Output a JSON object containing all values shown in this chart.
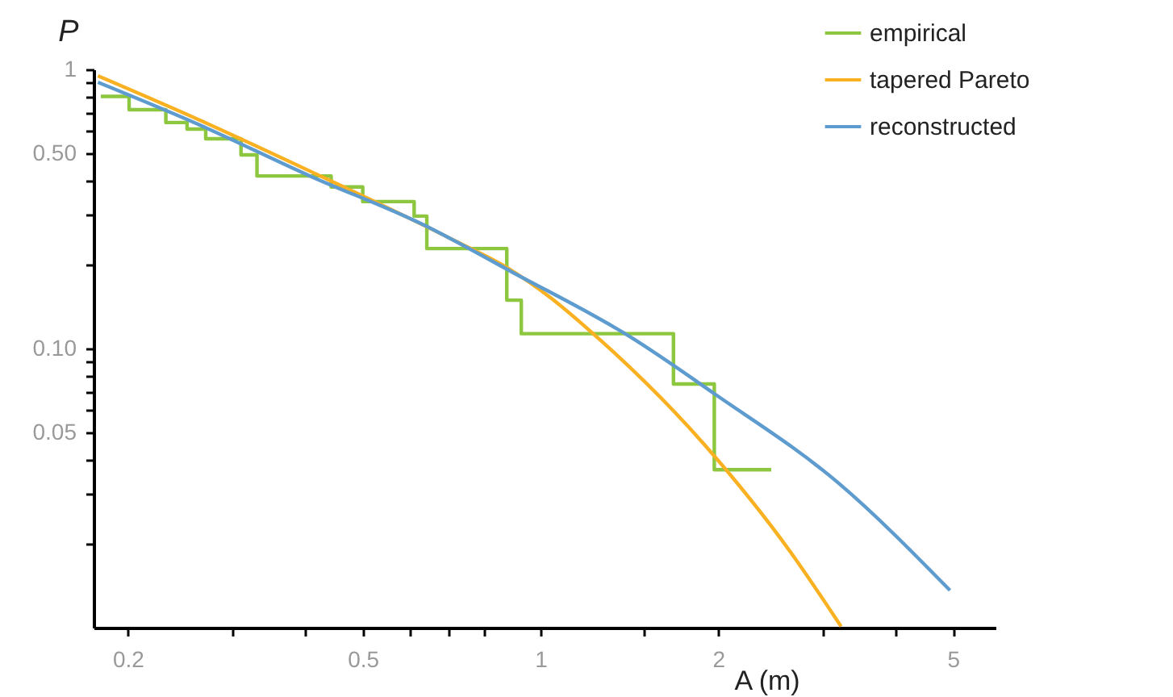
{
  "chart_data": {
    "type": "line",
    "xlabel": "A (m)",
    "ylabel": "P",
    "log": "xy",
    "grid": false,
    "legend": "top right",
    "xlim": [
      0.175,
      5.9
    ],
    "ylim": [
      0.01,
      1
    ],
    "xticks": [
      0.2,
      {
        "value": 0.3,
        "label": null
      },
      {
        "value": 0.4,
        "label": null
      },
      0.5,
      {
        "value": 0.6,
        "label": null
      },
      {
        "value": 0.7,
        "label": null
      },
      {
        "value": 0.8,
        "label": null
      },
      1,
      {
        "value": 1.5,
        "label": null
      },
      2,
      {
        "value": 3,
        "label": null
      },
      {
        "value": 4,
        "label": null
      },
      5
    ],
    "yticks": [
      {
        "value": 0.02,
        "label": null
      },
      {
        "value": 0.03,
        "label": null
      },
      {
        "value": 0.04,
        "label": null
      },
      {
        "value": 0.05,
        "label": "0.05"
      },
      {
        "value": 0.06,
        "label": null
      },
      {
        "value": 0.07,
        "label": null
      },
      {
        "value": 0.08,
        "label": null
      },
      {
        "value": 0.09,
        "label": null
      },
      {
        "value": 0.1,
        "label": "0.10"
      },
      {
        "value": 0.2,
        "label": null
      },
      {
        "value": 0.3,
        "label": null
      },
      {
        "value": 0.4,
        "label": null
      },
      {
        "value": 0.5,
        "label": "0.50"
      },
      {
        "value": 0.6,
        "label": null
      },
      {
        "value": 0.7,
        "label": null
      },
      {
        "value": 0.8,
        "label": null
      },
      {
        "value": 0.9,
        "label": null
      },
      1
    ],
    "series": [
      {
        "name": "empirical",
        "type": "step",
        "color": "#8dc63f",
        "x": [
          0.18,
          0.201,
          0.232,
          0.252,
          0.271,
          0.311,
          0.331,
          0.442,
          0.5,
          0.611,
          0.642,
          0.877,
          0.928,
          1.68,
          1.97,
          2.46
        ],
        "values": [
          0.8,
          0.717,
          0.645,
          0.611,
          0.564,
          0.494,
          0.415,
          0.379,
          0.336,
          0.298,
          0.228,
          0.149,
          0.113,
          0.0746,
          0.0368,
          0.0368
        ]
      },
      {
        "name": "tapered Pareto",
        "color": "#f9b122",
        "x": [
          0.178,
          0.263,
          0.407,
          0.714,
          0.877,
          1.04,
          1.2,
          1.9,
          2.65,
          3.23
        ],
        "values": [
          0.948,
          0.662,
          0.432,
          0.244,
          0.195,
          0.152,
          0.118,
          0.045,
          0.0187,
          0.0101
        ]
      },
      {
        "name": "reconstructed",
        "color": "#5e9ccf",
        "x": [
          0.178,
          0.263,
          0.407,
          0.63,
          0.899,
          1.42,
          1.97,
          3.19,
          4.94
        ],
        "values": [
          0.899,
          0.636,
          0.415,
          0.279,
          0.187,
          0.11,
          0.0689,
          0.0331,
          0.0136
        ]
      }
    ]
  }
}
